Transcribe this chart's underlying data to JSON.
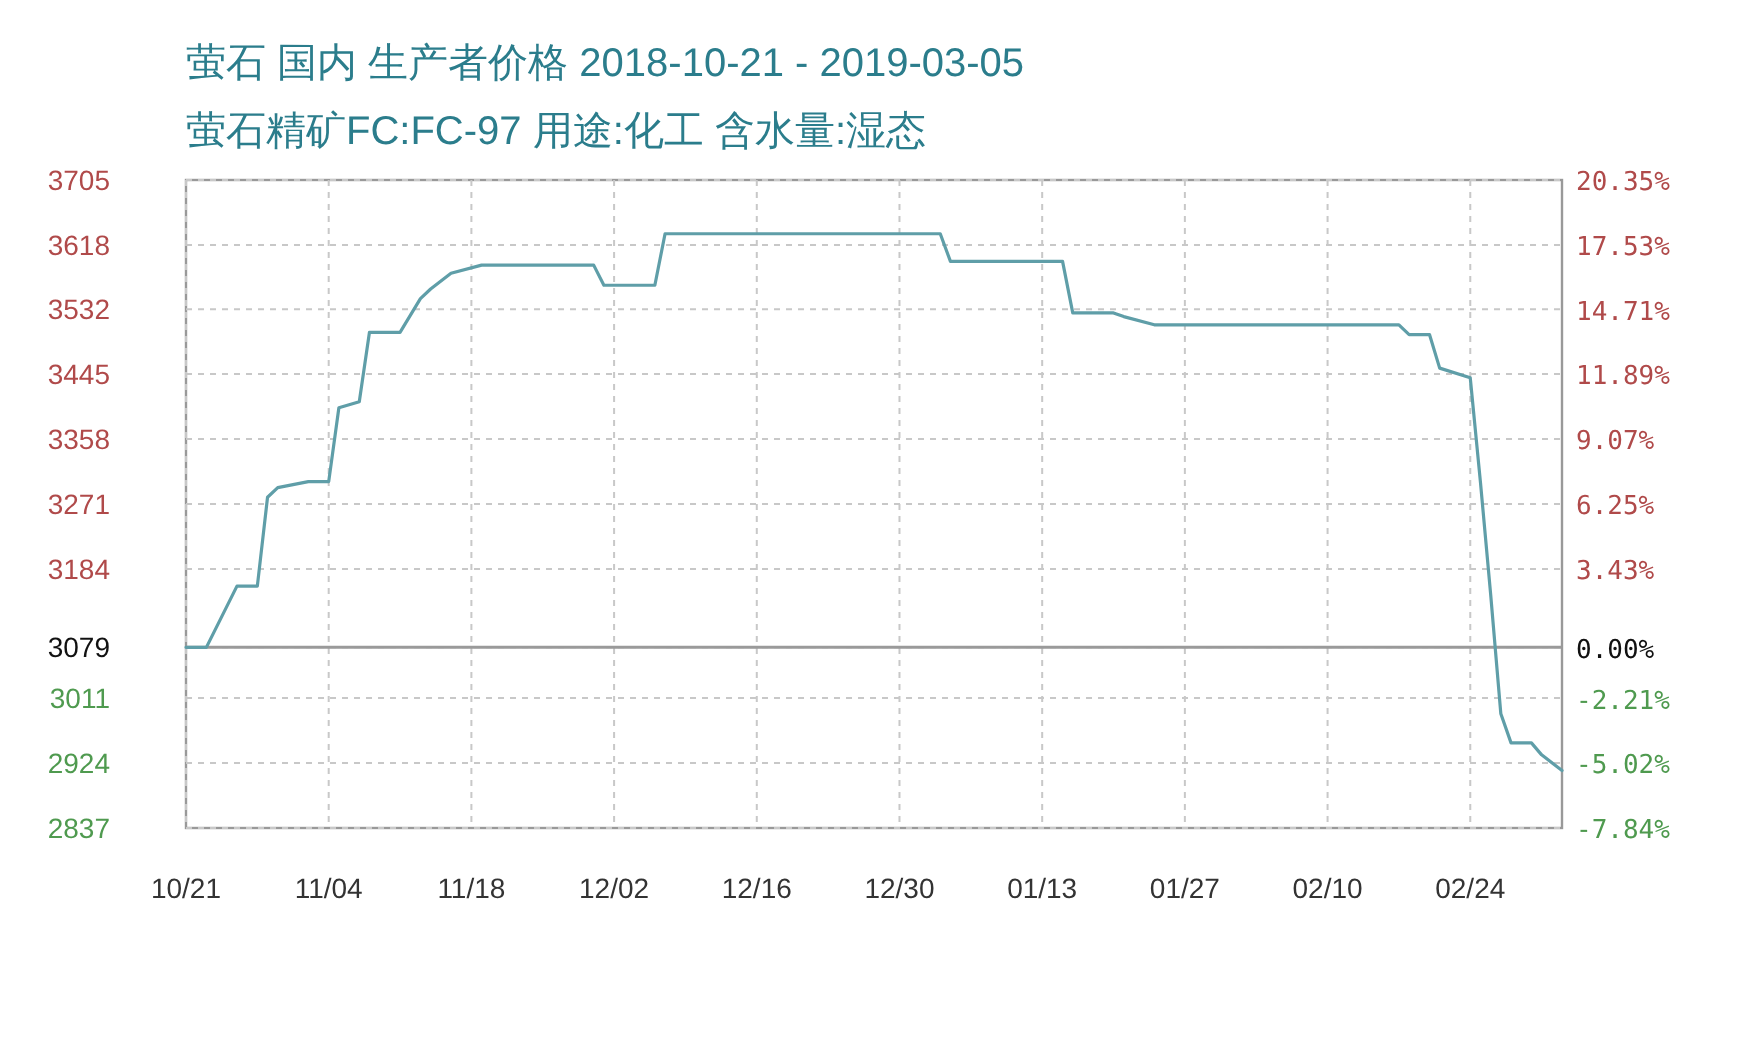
{
  "chart_data": {
    "type": "line",
    "title": "萤石 国内 生产者价格 2018-10-21 - 2019-03-05",
    "subtitle": "萤石精矿FC:FC-97 用途:化工 含水量:湿态",
    "x": [
      "2018-10-21",
      "2018-10-23",
      "2018-10-26",
      "2018-10-28",
      "2018-10-29",
      "2018-10-30",
      "2018-11-02",
      "2018-11-04",
      "2018-11-05",
      "2018-11-07",
      "2018-11-08",
      "2018-11-11",
      "2018-11-13",
      "2018-11-14",
      "2018-11-16",
      "2018-11-19",
      "2018-11-30",
      "2018-12-01",
      "2018-12-06",
      "2018-12-07",
      "2019-01-03",
      "2019-01-04",
      "2019-01-15",
      "2019-01-16",
      "2019-01-20",
      "2019-01-21",
      "2019-01-24",
      "2019-02-17",
      "2019-02-18",
      "2019-02-20",
      "2019-02-21",
      "2019-02-24",
      "2019-02-25",
      "2019-02-26",
      "2019-02-27",
      "2019-02-28",
      "2019-03-02",
      "2019-03-03",
      "2019-03-05"
    ],
    "series": [
      {
        "color": "#5f9ea8",
        "values": [
          3079,
          3079,
          3161,
          3161,
          3280,
          3293,
          3301,
          3301,
          3400,
          3408,
          3501,
          3501,
          3546,
          3559,
          3580,
          3591,
          3591,
          3564,
          3564,
          3633,
          3633,
          3596,
          3596,
          3527,
          3527,
          3522,
          3511,
          3511,
          3498,
          3498,
          3453,
          3440,
          3300,
          3150,
          2990,
          2951,
          2951,
          2935,
          2914
        ]
      }
    ],
    "xlim": [
      "2018-10-21",
      "2019-03-05"
    ],
    "xticks": [
      {
        "value": "2018-10-21",
        "label": "10/21"
      },
      {
        "value": "2018-11-04",
        "label": "11/04"
      },
      {
        "value": "2018-11-18",
        "label": "11/18"
      },
      {
        "value": "2018-12-02",
        "label": "12/02"
      },
      {
        "value": "2018-12-16",
        "label": "12/16"
      },
      {
        "value": "2018-12-30",
        "label": "12/30"
      },
      {
        "value": "2019-01-13",
        "label": "01/13"
      },
      {
        "value": "2019-01-27",
        "label": "01/27"
      },
      {
        "value": "2019-02-10",
        "label": "02/10"
      },
      {
        "value": "2019-02-24",
        "label": "02/24"
      }
    ],
    "ylim": [
      2837,
      3705
    ],
    "yticks": [
      3705,
      3618,
      3532,
      3445,
      3358,
      3271,
      3184,
      3079,
      3011,
      2924,
      2837
    ],
    "y2lim": [
      -7.84,
      20.35
    ],
    "y2ticks": [
      {
        "value": 20.35,
        "label": "20.35%"
      },
      {
        "value": 17.53,
        "label": "17.53%"
      },
      {
        "value": 14.71,
        "label": "14.71%"
      },
      {
        "value": 11.89,
        "label": "11.89%"
      },
      {
        "value": 9.07,
        "label": "9.07%"
      },
      {
        "value": 6.25,
        "label": "6.25%"
      },
      {
        "value": 3.43,
        "label": "3.43%"
      },
      {
        "value": 0,
        "label": "0.00%"
      },
      {
        "value": -2.21,
        "label": "-2.21%"
      },
      {
        "value": -5.02,
        "label": "-5.02%"
      },
      {
        "value": -7.84,
        "label": "-7.84%"
      }
    ],
    "grid": true,
    "ref_lines": [
      {
        "axis": "y",
        "value": 3079,
        "color": "#9a9a9a"
      }
    ]
  }
}
